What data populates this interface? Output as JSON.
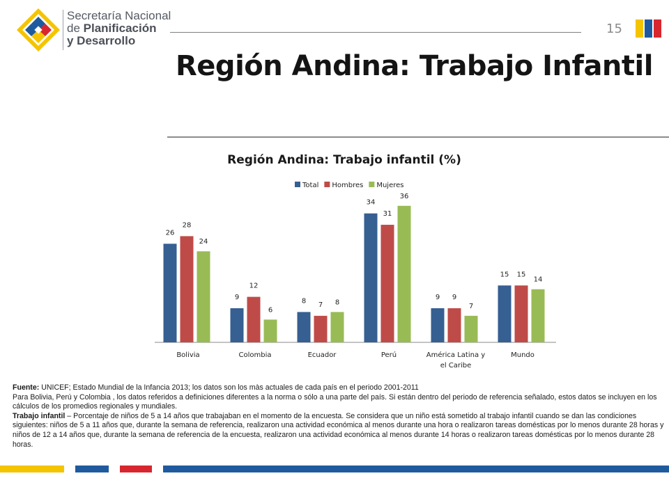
{
  "header": {
    "org_line1": "Secretaría Nacional",
    "org_line2a": "de ",
    "org_line2b": "Planificación",
    "org_line3": "y Desarrollo",
    "page_number": "15"
  },
  "slide_title": "Región Andina: Trabajo Infantil",
  "colors": {
    "total": "#365f92",
    "hombres": "#bf4b48",
    "mujeres": "#99bb55",
    "flag_yellow": "#f5c400",
    "flag_blue": "#1f5a9e",
    "flag_red": "#d8262f"
  },
  "chart_data": {
    "type": "bar",
    "title": "Región Andina: Trabajo infantil (%)",
    "categories": [
      "Bolivia",
      "Colombia",
      "Ecuador",
      "Perú",
      "América Latina y el Caribe",
      "Mundo"
    ],
    "category_lines": [
      [
        "Bolivia"
      ],
      [
        "Colombia"
      ],
      [
        "Ecuador"
      ],
      [
        "Perú"
      ],
      [
        "América Latina y",
        "el Caribe"
      ],
      [
        "Mundo"
      ]
    ],
    "series": [
      {
        "name": "Total",
        "values": [
          26,
          9,
          8,
          34,
          9,
          15
        ]
      },
      {
        "name": "Hombres",
        "values": [
          28,
          12,
          7,
          31,
          9,
          15
        ]
      },
      {
        "name": "Mujeres",
        "values": [
          24,
          6,
          8,
          36,
          7,
          14
        ]
      }
    ],
    "legend_position": "top-center",
    "ylim": [
      0,
      40
    ],
    "grid": false,
    "data_labels": true
  },
  "footer": {
    "source_label": "Fuente:",
    "source_text": " UNICEF; Estado Mundial de la Infancia 2013; los datos son los màs actuales de cada país en el periodo 2001-2011",
    "note_text": "Para Bolivia, Perú y Colombia , los datos referidos a definiciones diferentes a la norma o sólo a una parte del país. Si están dentro del periodo de referencia señalado, estos datos se incluyen en los cálculos de los promedios regionales y mundiales.",
    "definition_label": "Trabajo infantil",
    "definition_text": " – Porcentaje de niños de 5 a 14 años que trabajaban en el momento de la encuesta. Se considera que un niño está sometido al trabajo infantil cuando se dan las condiciones siguientes: niños de 5 a 11 años que, durante la semana de referencia, realizaron una actividad económica al menos durante una hora o realizaron tareas domésticas por lo menos durante 28 horas y niños de 12 a 14 años que, durante la semana de referencia de la encuesta, realizaron una actividad económica al menos durante 14 horas o realizaron tareas domésticas por lo menos durante 28 horas."
  }
}
